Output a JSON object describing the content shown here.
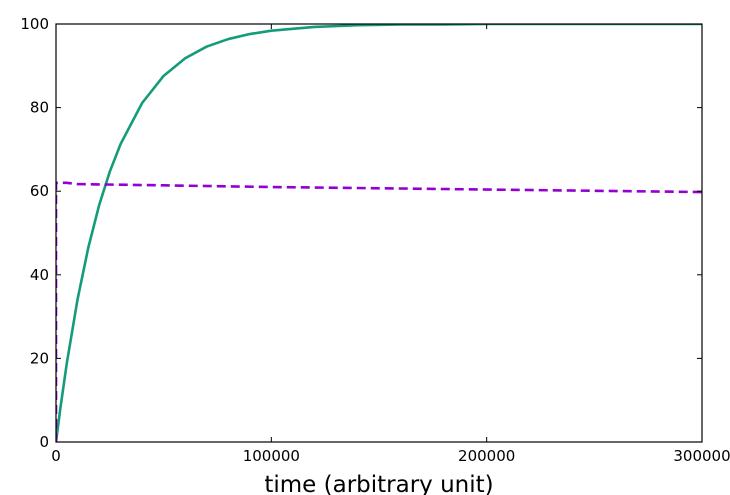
{
  "chart_data": {
    "type": "line",
    "title": "",
    "xlabel": "time (arbitrary unit)",
    "ylabel": "",
    "xlim": [
      0,
      300000
    ],
    "ylim": [
      0,
      100
    ],
    "grid": false,
    "x_ticks": [
      {
        "value": 0,
        "label": "0"
      },
      {
        "value": 100000,
        "label": "100000"
      },
      {
        "value": 200000,
        "label": "200000"
      },
      {
        "value": 300000,
        "label": "300000"
      }
    ],
    "y_ticks": [
      {
        "value": 0,
        "label": "0"
      },
      {
        "value": 20,
        "label": "20"
      },
      {
        "value": 40,
        "label": "40"
      },
      {
        "value": 60,
        "label": "60"
      },
      {
        "value": 80,
        "label": "80"
      },
      {
        "value": 100,
        "label": "100"
      }
    ],
    "series": [
      {
        "color": "#149b7a",
        "style": "solid",
        "x": [
          0,
          2000,
          5000,
          10000,
          15000,
          20000,
          25000,
          30000,
          40000,
          50000,
          60000,
          70000,
          80000,
          90000,
          100000,
          120000,
          140000,
          160000,
          180000,
          200000,
          250000,
          300000
        ],
        "y": [
          0,
          8.0,
          18.8,
          34.1,
          46.5,
          56.6,
          64.7,
          71.3,
          81.1,
          87.6,
          91.8,
          94.6,
          96.4,
          97.6,
          98.4,
          99.3,
          99.7,
          99.9,
          99.9,
          100,
          100,
          100
        ]
      },
      {
        "color": "#9400d3",
        "style": "dashed",
        "x": [
          0,
          0,
          5000,
          10000,
          50000,
          100000,
          150000,
          200000,
          250000,
          300000
        ],
        "y": [
          0,
          62.0,
          62.0,
          61.7,
          61.4,
          61.0,
          60.7,
          60.4,
          60.1,
          59.8
        ]
      }
    ]
  }
}
